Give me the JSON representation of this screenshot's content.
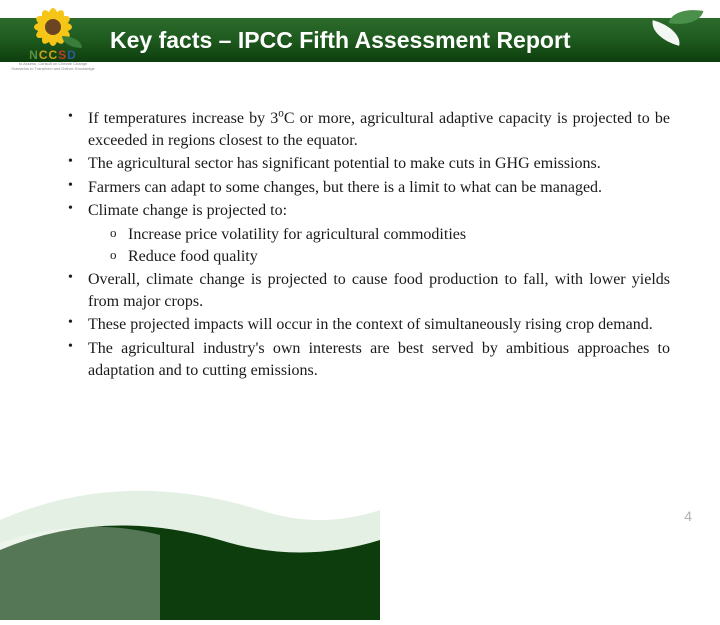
{
  "header": {
    "title": "Key facts – IPCC Fifth Assessment Report",
    "bg_gradient": [
      "#2d6b2d",
      "#1e5a1e",
      "#0d3d0d"
    ],
    "title_color": "#ffffff",
    "title_fontsize": 23
  },
  "logo": {
    "acronym_letters": [
      "N",
      "C",
      "C",
      "S",
      "D"
    ],
    "acronym_colors": [
      "#5a8f3e",
      "#d4a017",
      "#d4a017",
      "#c0392b",
      "#2c5aa0"
    ],
    "subtext_line1": "to Assess, Consult on Climate Change",
    "subtext_line2": "Scenarios to Transform and Deliver Knowledge",
    "sunflower_petal_color": "#f5c518",
    "sunflower_center_color": "#6b4423",
    "leaf_color": "#3a7d3a"
  },
  "corner_decoration": {
    "leaf_white": "#ffffff",
    "leaf_green": "#4a8f4a"
  },
  "bullets": [
    {
      "text_parts": [
        "If temperatures increase by 3",
        "o",
        "C or more, agricultural adaptive capacity is projected to be exceeded in regions closest to the equator."
      ],
      "has_superscript": true
    },
    {
      "text": "The agricultural sector has significant potential to make cuts in GHG emissions."
    },
    {
      "text": "Farmers can adapt to some changes, but there is a limit to what can be managed."
    },
    {
      "text": "Climate change is projected to:",
      "subitems": [
        "Increase price volatility for agricultural commodities",
        "Reduce food quality"
      ]
    },
    {
      "text": "Overall, climate change is projected to cause food production to fall, with lower yields from major crops."
    },
    {
      "text": "These projected impacts will occur in the context of simultaneously rising crop demand."
    },
    {
      "text": "The agricultural industry's own interests are best served by ambitious approaches to adaptation and to cutting emissions."
    }
  ],
  "page_number": "4",
  "body_fontsize": 16,
  "body_color": "#1a1a1a",
  "background_color": "#ffffff",
  "swoosh_colors": {
    "light": "#d8ead8",
    "dark": "#0d3d0d"
  }
}
